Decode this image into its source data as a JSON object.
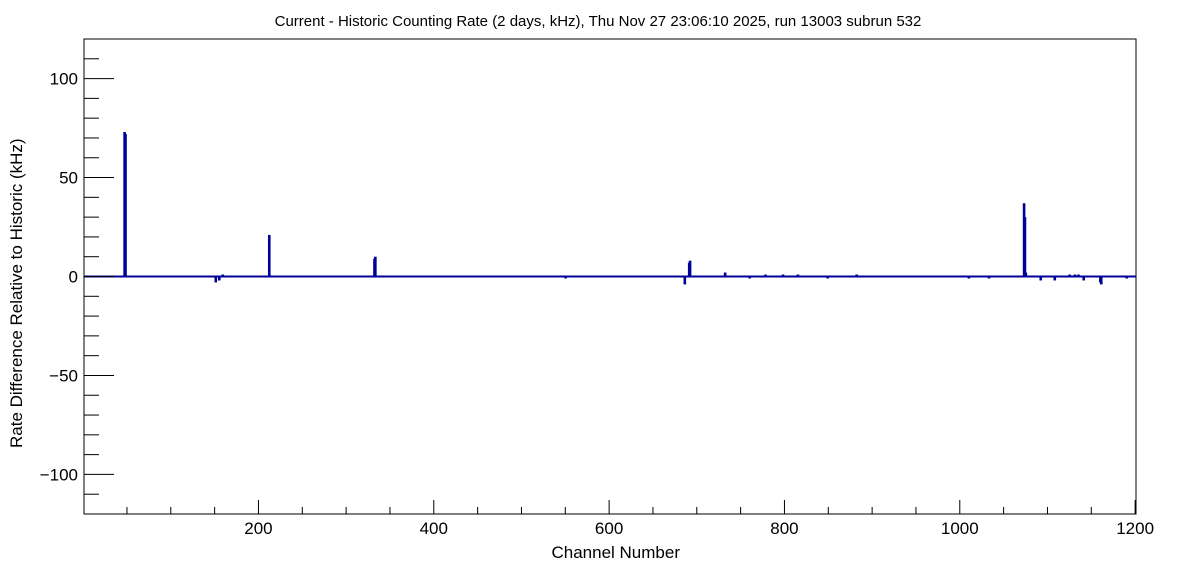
{
  "chart_data": {
    "type": "bar",
    "title": "Current - Historic Counting Rate (2 days, kHz), Thu Nov 27 23:06:10 2025, run 13003 subrun 532",
    "xlabel": "Channel Number",
    "ylabel": "Rate Difference Relative to Historic (kHz)",
    "xlim": [
      0,
      1200
    ],
    "ylim": [
      -120,
      120
    ],
    "x_ticks": [
      200,
      400,
      600,
      800,
      1000,
      1200
    ],
    "y_ticks": [
      -100,
      -50,
      0,
      50,
      100
    ],
    "grid": false,
    "legend": "none",
    "color": "#000099",
    "points": [
      {
        "x": 47,
        "y": 73
      },
      {
        "x": 48,
        "y": 72
      },
      {
        "x": 151,
        "y": -3
      },
      {
        "x": 155,
        "y": -2
      },
      {
        "x": 159,
        "y": 1
      },
      {
        "x": 212,
        "y": 21
      },
      {
        "x": 332,
        "y": 9
      },
      {
        "x": 333,
        "y": 10
      },
      {
        "x": 550,
        "y": -1
      },
      {
        "x": 686,
        "y": -4
      },
      {
        "x": 691,
        "y": 7
      },
      {
        "x": 692,
        "y": 8
      },
      {
        "x": 732,
        "y": 2
      },
      {
        "x": 760,
        "y": -1
      },
      {
        "x": 778,
        "y": 1
      },
      {
        "x": 798,
        "y": 1
      },
      {
        "x": 815,
        "y": 1
      },
      {
        "x": 849,
        "y": -1
      },
      {
        "x": 882,
        "y": 1
      },
      {
        "x": 1010,
        "y": -1
      },
      {
        "x": 1033,
        "y": -1
      },
      {
        "x": 1073,
        "y": 37
      },
      {
        "x": 1074,
        "y": 30
      },
      {
        "x": 1075,
        "y": 2
      },
      {
        "x": 1092,
        "y": -2
      },
      {
        "x": 1108,
        "y": -2
      },
      {
        "x": 1125,
        "y": 1
      },
      {
        "x": 1131,
        "y": 1
      },
      {
        "x": 1135,
        "y": 1
      },
      {
        "x": 1141,
        "y": -2
      },
      {
        "x": 1160,
        "y": -3
      },
      {
        "x": 1161,
        "y": -4
      },
      {
        "x": 1190,
        "y": -1
      }
    ]
  }
}
